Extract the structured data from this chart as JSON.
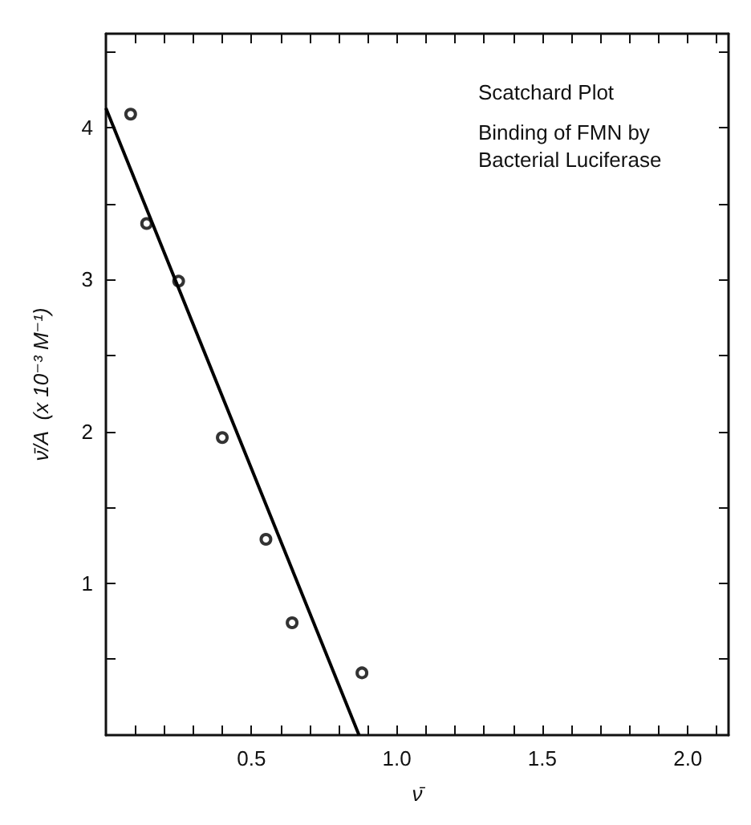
{
  "chart_data": {
    "type": "scatter",
    "title": "Scatchard Plot",
    "subtitle": "Binding of FMN by Bacterial Luciferase",
    "xlabel": "ν̄",
    "ylabel": "ν̄/A  (x 10⁻³ M⁻¹)",
    "x": [
      0.085,
      0.14,
      0.25,
      0.4,
      0.55,
      0.64,
      0.88
    ],
    "series": [
      {
        "color": "#000000",
        "marker": "circle",
        "values": [
          4.09,
          3.37,
          2.99,
          1.96,
          1.29,
          0.74,
          0.41
        ]
      },
      {
        "type": "line",
        "color": "#000000",
        "marker": "none",
        "line_style": "solid",
        "x": [
          0,
          0.87
        ],
        "values": [
          4.13,
          0
        ]
      }
    ],
    "xlim": [
      0,
      2.14
    ],
    "ylim": [
      0,
      4.62
    ],
    "xticks": [
      {
        "value": 0.1,
        "label": null
      },
      {
        "value": 0.2,
        "label": null
      },
      {
        "value": 0.3,
        "label": null
      },
      {
        "value": 0.4,
        "label": null
      },
      0.5,
      {
        "value": 0.6,
        "label": null
      },
      {
        "value": 0.7,
        "label": null
      },
      {
        "value": 0.8,
        "label": null
      },
      {
        "value": 0.9,
        "label": null
      },
      {
        "value": 1.0,
        "label": "1.0"
      },
      {
        "value": 1.1,
        "label": null
      },
      {
        "value": 1.2,
        "label": null
      },
      {
        "value": 1.3,
        "label": null
      },
      {
        "value": 1.4,
        "label": null
      },
      1.5,
      {
        "value": 1.6,
        "label": null
      },
      {
        "value": 1.7,
        "label": null
      },
      {
        "value": 1.8,
        "label": null
      },
      {
        "value": 1.9,
        "label": null
      },
      {
        "value": 2.0,
        "label": "2.0"
      },
      {
        "value": 2.1,
        "label": null
      }
    ],
    "yticks": [
      {
        "value": 0.5,
        "label": null
      },
      1,
      {
        "value": 1.5,
        "label": null
      },
      2,
      {
        "value": 2.5,
        "label": null
      },
      3,
      {
        "value": 3.5,
        "label": null
      },
      4,
      {
        "value": 4.5,
        "label": null
      }
    ],
    "grid": false
  }
}
